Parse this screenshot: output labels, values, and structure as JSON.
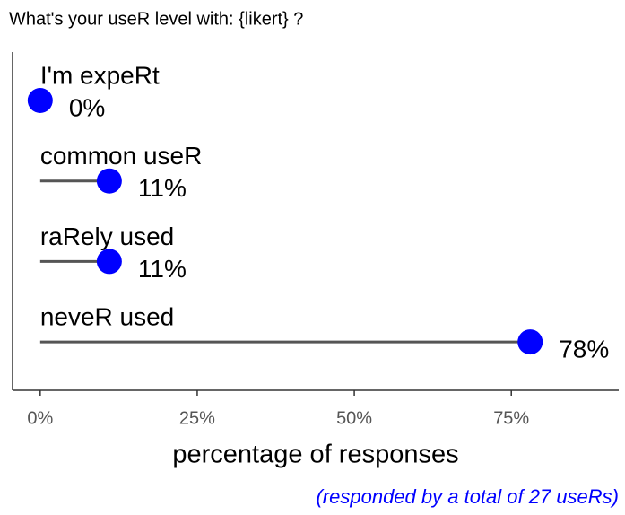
{
  "chart_data": {
    "type": "lollipop",
    "title": "What's your useR level with: {likert} ?",
    "categories": [
      "I'm expeRt",
      "common useR",
      "raRely used",
      "neveR used"
    ],
    "values": [
      0,
      11,
      11,
      78
    ],
    "value_labels": [
      "0%",
      "11%",
      "11%",
      "78%"
    ],
    "color": "#0000ff",
    "xlim": [
      -4.4,
      92.1
    ],
    "xticks": [
      {
        "value": 0,
        "label": "0%"
      },
      {
        "value": 25,
        "label": "25%"
      },
      {
        "value": 50,
        "label": "50%"
      },
      {
        "value": 75,
        "label": "75%"
      }
    ],
    "x_label": "percentage of responses",
    "caption": "(responded by a total of 27 useRs)"
  }
}
